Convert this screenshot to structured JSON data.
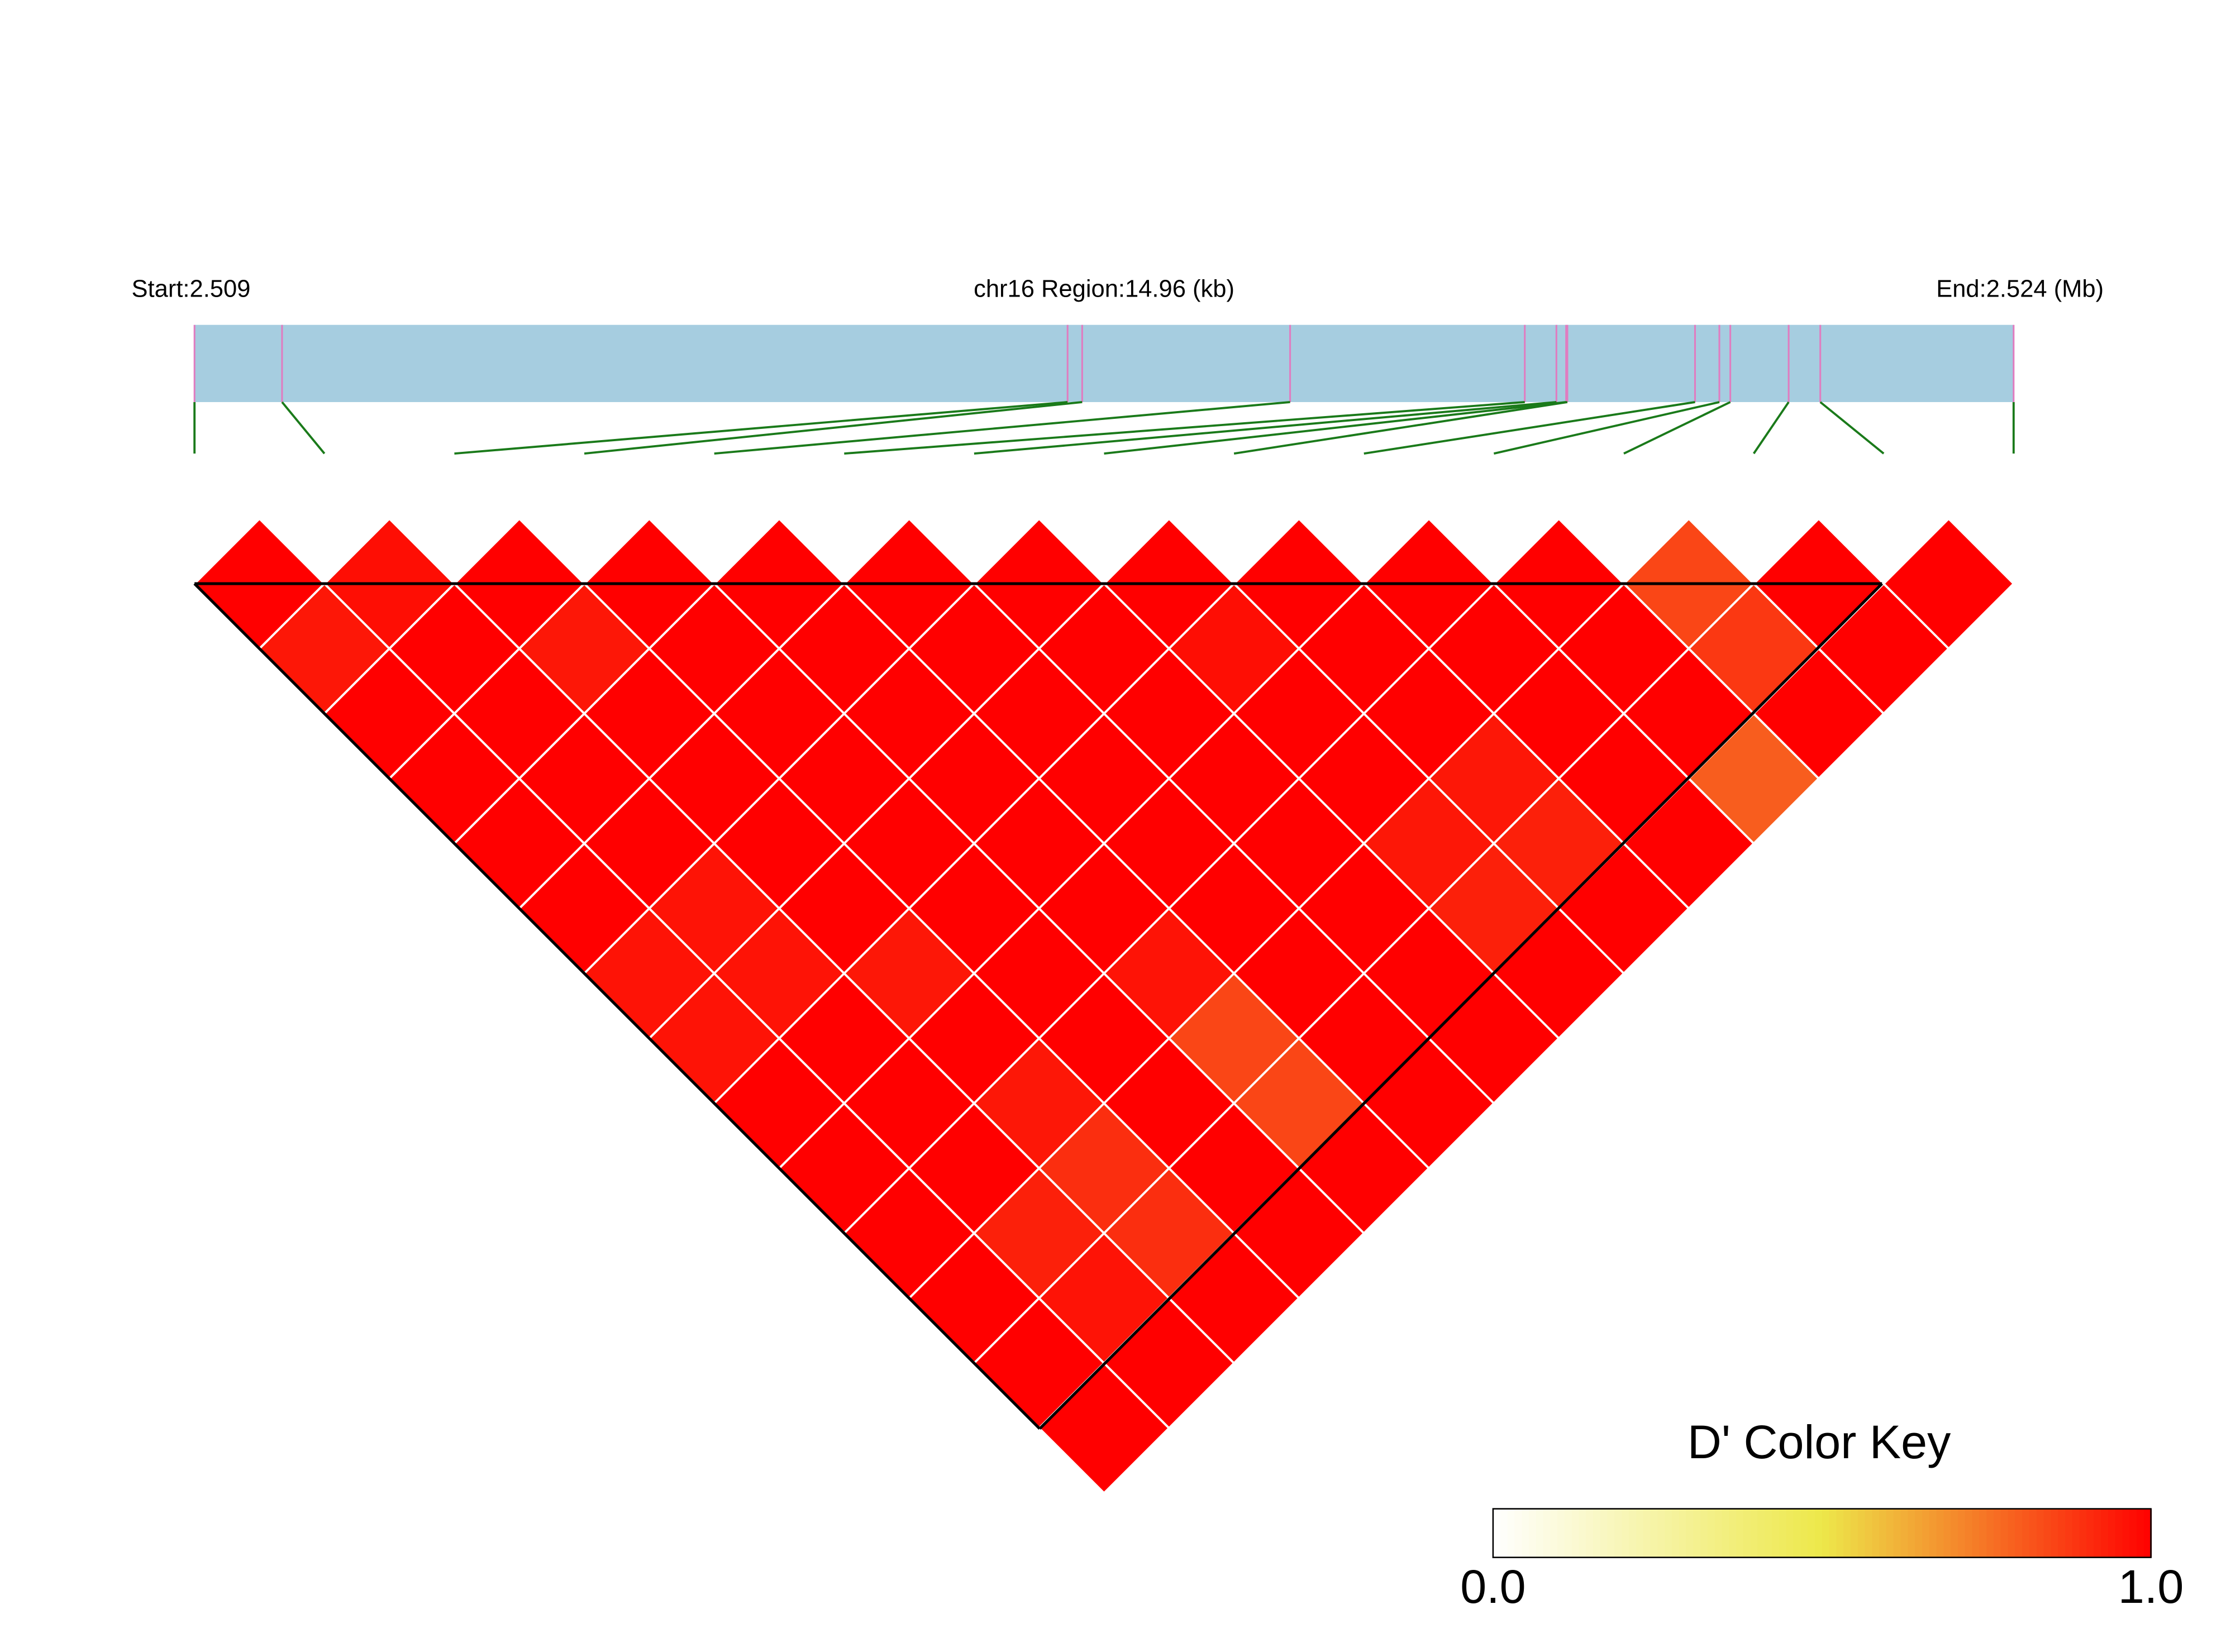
{
  "chart_data": {
    "type": "heatmap",
    "region_start_label": "Start:2.509",
    "region_label": "chr16 Region:14.96 (kb)",
    "region_end_label": "End:2.524 (Mb)",
    "xlim": [
      2.509,
      2.52396
    ],
    "snp_positions": [
      2.509,
      2.50972,
      2.51618,
      2.5163,
      2.51801,
      2.51994,
      2.5202,
      2.52028,
      2.52029,
      2.52134,
      2.52154,
      2.52163,
      2.52211,
      2.52237,
      2.52396
    ],
    "dprime": [
      [
        1,
        0.95,
        1,
        1,
        1,
        1,
        0.96,
        0.96,
        1,
        1,
        1,
        1,
        1,
        1
      ],
      [
        0.97,
        1,
        1,
        1,
        1,
        0.96,
        0.96,
        1,
        1,
        1,
        0.93,
        0.96,
        1
      ],
      [
        1,
        0.95,
        1,
        1,
        1,
        1,
        0.95,
        1,
        0.95,
        0.9,
        0.9,
        1
      ],
      [
        1,
        1,
        1,
        1,
        1,
        1,
        1,
        1,
        1,
        1,
        1
      ],
      [
        1,
        1,
        1,
        1,
        1,
        1,
        0.96,
        0.85,
        0.85,
        1
      ],
      [
        1,
        1,
        1,
        1,
        1,
        1,
        1,
        1,
        1
      ],
      [
        1,
        1,
        1,
        1,
        1,
        1,
        1,
        1
      ],
      [
        1,
        0.97,
        1,
        1,
        0.95,
        0.93,
        1
      ],
      [
        1,
        1,
        1,
        0.95,
        0.93,
        1
      ],
      [
        1,
        1,
        1,
        1,
        1
      ],
      [
        1,
        1,
        1,
        0.8
      ],
      [
        0.85,
        0.88,
        1
      ],
      [
        1,
        1
      ],
      [
        1
      ]
    ],
    "color_key": {
      "title": "D' Color Key",
      "lim": [
        0,
        1
      ],
      "colors": [
        "#ffffff",
        "#ede84a",
        "#ff0000"
      ],
      "ticks": [
        {
          "value": 0,
          "label": "0.0"
        },
        {
          "value": 1,
          "label": "1.0"
        }
      ]
    }
  }
}
